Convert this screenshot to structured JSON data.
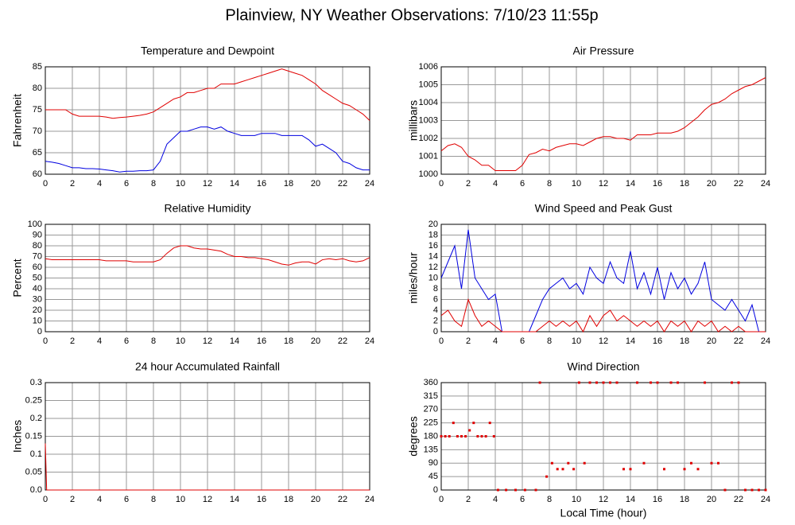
{
  "title": "Plainview, NY Weather Observations: 7/10/23 11:55p",
  "chart_data": [
    {
      "type": "line",
      "title": "Temperature and Dewpoint",
      "ylabel": "Fahrenheit",
      "grid": true,
      "xlim": [
        0,
        24
      ],
      "xticks": [
        0,
        2,
        4,
        6,
        8,
        10,
        12,
        14,
        16,
        18,
        20,
        22,
        24
      ],
      "ylim": [
        60,
        85
      ],
      "yticks": [
        60,
        65,
        70,
        75,
        80,
        85
      ],
      "x": [
        0,
        0.5,
        1,
        1.5,
        2,
        2.5,
        3,
        3.5,
        4,
        4.5,
        5,
        5.5,
        6,
        6.5,
        7,
        7.5,
        8,
        8.5,
        9,
        9.5,
        10,
        10.5,
        11,
        11.5,
        12,
        12.5,
        13,
        13.5,
        14,
        14.5,
        15,
        15.5,
        16,
        16.5,
        17,
        17.5,
        18,
        18.5,
        19,
        19.5,
        20,
        20.5,
        21,
        21.5,
        22,
        22.5,
        23,
        23.5,
        24
      ],
      "series": [
        {
          "color": "#e00000",
          "values": [
            75,
            75,
            75,
            75,
            74,
            73.5,
            73.5,
            73.5,
            73.5,
            73.3,
            73,
            73.2,
            73.3,
            73.5,
            73.7,
            74,
            74.5,
            75.5,
            76.5,
            77.5,
            78,
            79,
            79,
            79.5,
            80,
            80,
            81,
            81,
            81,
            81.5,
            82,
            82.5,
            83,
            83.5,
            84,
            84.5,
            84,
            83.5,
            83,
            82,
            81,
            79.5,
            78.5,
            77.5,
            76.5,
            76,
            75,
            74,
            72.5
          ]
        },
        {
          "color": "#0000e0",
          "values": [
            63,
            62.8,
            62.5,
            62,
            61.5,
            61.5,
            61.3,
            61.3,
            61.2,
            61,
            60.8,
            60.5,
            60.7,
            60.7,
            60.8,
            60.8,
            61,
            63,
            67,
            68.5,
            70,
            70,
            70.5,
            71,
            71,
            70.5,
            71,
            70,
            69.5,
            69,
            69,
            69,
            69.5,
            69.5,
            69.5,
            69,
            69,
            69,
            69,
            68,
            66.5,
            67,
            66,
            65,
            63,
            62.5,
            61.5,
            61,
            61
          ]
        }
      ]
    },
    {
      "type": "line",
      "title": "Air Pressure",
      "ylabel": "millibars",
      "grid": true,
      "xlim": [
        0,
        24
      ],
      "xticks": [
        0,
        2,
        4,
        6,
        8,
        10,
        12,
        14,
        16,
        18,
        20,
        22,
        24
      ],
      "ylim": [
        1000,
        1006
      ],
      "yticks": [
        1000,
        1001,
        1002,
        1003,
        1004,
        1005,
        1006
      ],
      "x": [
        0,
        0.5,
        1,
        1.5,
        2,
        2.5,
        3,
        3.5,
        4,
        4.5,
        5,
        5.5,
        6,
        6.5,
        7,
        7.5,
        8,
        8.5,
        9,
        9.5,
        10,
        10.5,
        11,
        11.5,
        12,
        12.5,
        13,
        13.5,
        14,
        14.5,
        15,
        15.5,
        16,
        16.5,
        17,
        17.5,
        18,
        18.5,
        19,
        19.5,
        20,
        20.5,
        21,
        21.5,
        22,
        22.5,
        23,
        23.5,
        24
      ],
      "series": [
        {
          "color": "#e00000",
          "values": [
            1001.3,
            1001.6,
            1001.7,
            1001.5,
            1001,
            1000.8,
            1000.5,
            1000.5,
            1000.2,
            1000.2,
            1000.2,
            1000.2,
            1000.5,
            1001.1,
            1001.2,
            1001.4,
            1001.3,
            1001.5,
            1001.6,
            1001.7,
            1001.7,
            1001.6,
            1001.8,
            1002,
            1002.1,
            1002.1,
            1002,
            1002,
            1001.9,
            1002.2,
            1002.2,
            1002.2,
            1002.3,
            1002.3,
            1002.3,
            1002.4,
            1002.6,
            1002.9,
            1003.2,
            1003.6,
            1003.9,
            1004,
            1004.2,
            1004.5,
            1004.7,
            1004.9,
            1005,
            1005.2,
            1005.4
          ]
        }
      ]
    },
    {
      "type": "line",
      "title": "Relative Humidity",
      "ylabel": "Percent",
      "grid": true,
      "xlim": [
        0,
        24
      ],
      "xticks": [
        0,
        2,
        4,
        6,
        8,
        10,
        12,
        14,
        16,
        18,
        20,
        22,
        24
      ],
      "ylim": [
        0,
        100
      ],
      "yticks": [
        0,
        10,
        20,
        30,
        40,
        50,
        60,
        70,
        80,
        90,
        100
      ],
      "x": [
        0,
        0.5,
        1,
        1.5,
        2,
        2.5,
        3,
        3.5,
        4,
        4.5,
        5,
        5.5,
        6,
        6.5,
        7,
        7.5,
        8,
        8.5,
        9,
        9.5,
        10,
        10.5,
        11,
        11.5,
        12,
        12.5,
        13,
        13.5,
        14,
        14.5,
        15,
        15.5,
        16,
        16.5,
        17,
        17.5,
        18,
        18.5,
        19,
        19.5,
        20,
        20.5,
        21,
        21.5,
        22,
        22.5,
        23,
        23.5,
        24
      ],
      "series": [
        {
          "color": "#e00000",
          "values": [
            68,
            67,
            67,
            67,
            67,
            67,
            67,
            67,
            67,
            66,
            66,
            66,
            66,
            65,
            65,
            65,
            65,
            67,
            73,
            78,
            80,
            80,
            78,
            77,
            77,
            76,
            75,
            72,
            70,
            70,
            69,
            69,
            68,
            67,
            65,
            63,
            62,
            64,
            65,
            65,
            63,
            67,
            68,
            67,
            68,
            66,
            65,
            66,
            69
          ]
        }
      ]
    },
    {
      "type": "line",
      "title": "Wind Speed and Peak Gust",
      "ylabel": "miles/hour",
      "grid": true,
      "xlim": [
        0,
        24
      ],
      "xticks": [
        0,
        2,
        4,
        6,
        8,
        10,
        12,
        14,
        16,
        18,
        20,
        22,
        24
      ],
      "ylim": [
        0,
        20
      ],
      "yticks": [
        0,
        2,
        4,
        6,
        8,
        10,
        12,
        14,
        16,
        18,
        20
      ],
      "x": [
        0,
        0.5,
        1,
        1.5,
        2,
        2.5,
        3,
        3.5,
        4,
        4.5,
        5,
        5.5,
        6,
        6.5,
        7,
        7.5,
        8,
        8.5,
        9,
        9.5,
        10,
        10.5,
        11,
        11.5,
        12,
        12.5,
        13,
        13.5,
        14,
        14.5,
        15,
        15.5,
        16,
        16.5,
        17,
        17.5,
        18,
        18.5,
        19,
        19.5,
        20,
        20.5,
        21,
        21.5,
        22,
        22.5,
        23,
        23.5,
        24
      ],
      "series": [
        {
          "color": "#0000e0",
          "values": [
            10,
            13,
            16,
            8,
            19,
            10,
            8,
            6,
            7,
            0,
            0,
            0,
            0,
            0,
            3,
            6,
            8,
            9,
            10,
            8,
            9,
            7,
            12,
            10,
            9,
            13,
            10,
            9,
            15,
            8,
            11,
            7,
            12,
            6,
            11,
            8,
            10,
            7,
            9,
            13,
            6,
            5,
            4,
            6,
            4,
            2,
            5,
            0,
            0
          ]
        },
        {
          "color": "#e00000",
          "values": [
            3,
            4,
            2,
            1,
            6,
            3,
            1,
            2,
            1,
            0,
            0,
            0,
            0,
            0,
            0,
            1,
            2,
            1,
            2,
            1,
            2,
            0,
            3,
            1,
            3,
            4,
            2,
            3,
            2,
            1,
            2,
            1,
            2,
            0,
            2,
            1,
            2,
            0,
            2,
            1,
            2,
            0,
            1,
            0,
            1,
            0,
            0,
            0,
            0
          ]
        }
      ]
    },
    {
      "type": "line",
      "title": "24 hour Accumulated Rainfall",
      "ylabel": "Inches",
      "grid": true,
      "xlim": [
        0,
        24
      ],
      "xticks": [
        0,
        2,
        4,
        6,
        8,
        10,
        12,
        14,
        16,
        18,
        20,
        22,
        24
      ],
      "ylim": [
        0,
        0.3
      ],
      "yticks": [
        {
          "value": 0,
          "label": "0.0"
        },
        0.05,
        0.1,
        0.15,
        0.2,
        0.25,
        0.3
      ],
      "x": [
        0,
        0.1,
        24
      ],
      "series": [
        {
          "color": "#e00000",
          "values": [
            0.13,
            0,
            0
          ]
        }
      ]
    },
    {
      "type": "scatter",
      "title": "Wind Direction",
      "ylabel": "degrees",
      "xlabel": "Local Time (hour)",
      "grid": true,
      "xlim": [
        0,
        24
      ],
      "xticks": [
        0,
        2,
        4,
        6,
        8,
        10,
        12,
        14,
        16,
        18,
        20,
        22,
        24
      ],
      "ylim": [
        0,
        360
      ],
      "yticks": [
        0,
        45,
        90,
        135,
        180,
        225,
        270,
        315,
        360
      ],
      "x": [
        0,
        0.3,
        0.6,
        0.9,
        1.2,
        1.5,
        1.8,
        2.1,
        2.4,
        2.7,
        3,
        3.3,
        3.6,
        3.9,
        4.2,
        4.8,
        5.5,
        6.2,
        7,
        7.3,
        7.8,
        8.2,
        8.6,
        9,
        9.4,
        9.8,
        10.2,
        10.6,
        11,
        11.5,
        12,
        12.5,
        13,
        13.5,
        14,
        14.5,
        15,
        15.5,
        16,
        16.5,
        17,
        17.5,
        18,
        18.5,
        19,
        19.5,
        20,
        20.5,
        21,
        21.5,
        22,
        22.5,
        23,
        23.5,
        24
      ],
      "series": [
        {
          "color": "#e00000",
          "values": [
            180,
            180,
            180,
            225,
            180,
            180,
            180,
            200,
            225,
            180,
            180,
            180,
            225,
            180,
            0,
            0,
            0,
            0,
            0,
            360,
            45,
            90,
            70,
            70,
            90,
            70,
            360,
            90,
            360,
            360,
            360,
            360,
            360,
            70,
            70,
            360,
            90,
            360,
            360,
            70,
            360,
            360,
            70,
            90,
            70,
            360,
            90,
            90,
            0,
            360,
            360,
            0,
            0,
            0,
            0
          ]
        }
      ]
    }
  ]
}
